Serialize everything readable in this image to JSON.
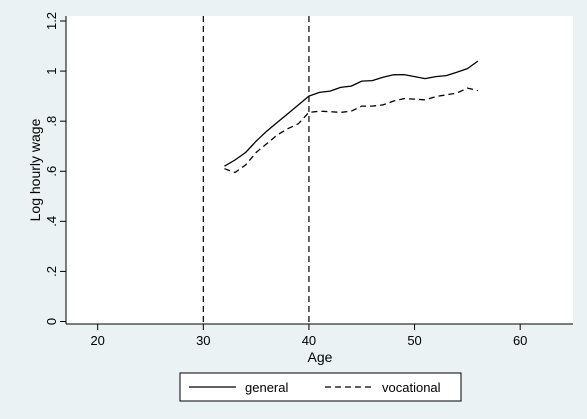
{
  "chart_data": {
    "type": "line",
    "xlabel": "Age",
    "ylabel": "Log hourly wage",
    "xlim": [
      17,
      65
    ],
    "ylim": [
      -0.01,
      1.22
    ],
    "x_ticks": [
      20,
      30,
      40,
      50,
      60
    ],
    "y_ticks": [
      0,
      0.2,
      0.4,
      0.6,
      0.8,
      1,
      1.2
    ],
    "y_tick_labels": [
      "0",
      ".2",
      ".4",
      ".6",
      ".8",
      "1",
      "1.2"
    ],
    "grid": false,
    "legend_position": "bottom",
    "reference_lines_x": [
      30,
      40
    ],
    "series": [
      {
        "name": "general",
        "line_style": "solid",
        "x": [
          32,
          33,
          34,
          35,
          36,
          37,
          38,
          39,
          40,
          41,
          42,
          43,
          44,
          45,
          46,
          47,
          48,
          49,
          50,
          51,
          52,
          53,
          54,
          55,
          56
        ],
        "y": [
          0.62,
          0.645,
          0.675,
          0.72,
          0.76,
          0.795,
          0.83,
          0.865,
          0.9,
          0.915,
          0.92,
          0.935,
          0.94,
          0.96,
          0.962,
          0.975,
          0.985,
          0.986,
          0.978,
          0.97,
          0.978,
          0.982,
          0.995,
          1.01,
          1.04
        ]
      },
      {
        "name": "vocational",
        "line_style": "dashed",
        "x": [
          32,
          33,
          34,
          35,
          36,
          37,
          38,
          39,
          40,
          41,
          42,
          43,
          44,
          45,
          46,
          47,
          48,
          49,
          50,
          51,
          52,
          53,
          54,
          55,
          56
        ],
        "y": [
          0.61,
          0.595,
          0.625,
          0.675,
          0.71,
          0.745,
          0.77,
          0.79,
          0.835,
          0.84,
          0.838,
          0.835,
          0.84,
          0.86,
          0.86,
          0.865,
          0.88,
          0.89,
          0.888,
          0.885,
          0.898,
          0.905,
          0.912,
          0.932,
          0.922
        ]
      }
    ],
    "colors": {
      "line": "#000000",
      "plot_background": "#ffffff",
      "outer_background": "#eaf2f3"
    }
  }
}
